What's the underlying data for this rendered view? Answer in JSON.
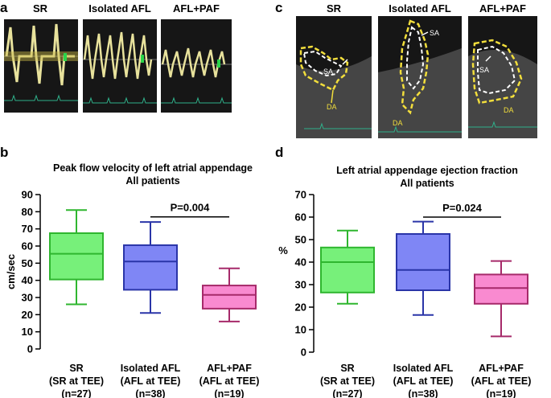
{
  "panels": {
    "a": {
      "letter": "a",
      "titles": [
        "SR",
        "Isolated AFL",
        "AFL+PAF"
      ]
    },
    "c": {
      "letter": "c",
      "titles": [
        "SR",
        "Isolated AFL",
        "AFL+PAF"
      ],
      "labels": {
        "sa": "SA",
        "da": "DA"
      }
    },
    "b": {
      "letter": "b"
    },
    "d": {
      "letter": "d"
    }
  },
  "colors": {
    "sr_fill": "#77f07a",
    "sr_stroke": "#2fb62f",
    "afl_fill": "#7f86f5",
    "afl_stroke": "#2a35a8",
    "paf_fill": "#f98ad0",
    "paf_stroke": "#a62a6a",
    "echo_yellow": "#f2de3c",
    "echo_trace": "#e8e29c",
    "ecg_green": "#2fb08a"
  },
  "chart_data": [
    {
      "type": "box",
      "title": "Peak flow velocity of left atrial appendage",
      "subtitle": "All patients",
      "ylabel": "cm/sec",
      "ylim": [
        0,
        90
      ],
      "yticks": [
        0,
        10,
        20,
        30,
        40,
        50,
        60,
        70,
        80,
        90
      ],
      "categories": [
        {
          "line1": "SR",
          "line2": "(SR at TEE)",
          "line3": "(n=27)"
        },
        {
          "line1": "Isolated AFL",
          "line2": "(AFL at TEE)",
          "line3": "(n=38)"
        },
        {
          "line1": "AFL+PAF",
          "line2": "(AFL at TEE)",
          "line3": "(n=19)"
        }
      ],
      "boxes": [
        {
          "min": 26,
          "q1": 40.5,
          "median": 55.5,
          "q3": 67.5,
          "max": 81
        },
        {
          "min": 21,
          "q1": 34.5,
          "median": 51,
          "q3": 60.5,
          "max": 74
        },
        {
          "min": 16,
          "q1": 23.5,
          "median": 31.5,
          "q3": 37,
          "max": 47
        }
      ],
      "annotation": {
        "text": "P=0.004",
        "from": 1,
        "to": 2,
        "y": 77
      }
    },
    {
      "type": "box",
      "title": "Left atrial appendage ejection fraction",
      "subtitle": "All patients",
      "ylabel": "%",
      "ylim": [
        0,
        70
      ],
      "yticks": [
        0,
        10,
        20,
        30,
        40,
        50,
        60,
        70
      ],
      "categories": [
        {
          "line1": "SR",
          "line2": "(SR at TEE)",
          "line3": "(n=27)"
        },
        {
          "line1": "Isolated AFL",
          "line2": "(AFL at TEE)",
          "line3": "(n=38)"
        },
        {
          "line1": "AFL+PAF",
          "line2": "(AFL at TEE)",
          "line3": "(n=19)"
        }
      ],
      "boxes": [
        {
          "min": 21.5,
          "q1": 26.5,
          "median": 40,
          "q3": 46.5,
          "max": 54
        },
        {
          "min": 16.5,
          "q1": 27.5,
          "median": 36.5,
          "q3": 52.5,
          "max": 58
        },
        {
          "min": 7,
          "q1": 21.5,
          "median": 28.5,
          "q3": 34.5,
          "max": 40.5
        }
      ],
      "annotation": {
        "text": "P=0.024",
        "from": 1,
        "to": 2,
        "y": 60
      }
    }
  ]
}
